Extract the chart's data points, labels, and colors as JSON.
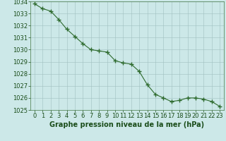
{
  "x": [
    0,
    1,
    2,
    3,
    4,
    5,
    6,
    7,
    8,
    9,
    10,
    11,
    12,
    13,
    14,
    15,
    16,
    17,
    18,
    19,
    20,
    21,
    22,
    23
  ],
  "y": [
    1033.8,
    1033.4,
    1033.2,
    1032.5,
    1031.7,
    1031.1,
    1030.5,
    1030.0,
    1029.9,
    1029.8,
    1029.1,
    1028.9,
    1028.8,
    1028.2,
    1027.1,
    1026.3,
    1026.0,
    1025.7,
    1025.8,
    1026.0,
    1026.0,
    1025.9,
    1025.7,
    1025.3
  ],
  "line_color": "#2d6a2d",
  "marker": "+",
  "marker_size": 4,
  "bg_color": "#cce8e8",
  "grid_color": "#a0c0c0",
  "xlabel": "Graphe pression niveau de la mer (hPa)",
  "xlabel_color": "#1a4d1a",
  "xlabel_fontsize": 7,
  "tick_color": "#1a4d1a",
  "tick_fontsize": 6,
  "ylim": [
    1025,
    1034
  ],
  "xlim": [
    -0.5,
    23.5
  ],
  "yticks": [
    1025,
    1026,
    1027,
    1028,
    1029,
    1030,
    1031,
    1032,
    1033,
    1034
  ],
  "xticks": [
    0,
    1,
    2,
    3,
    4,
    5,
    6,
    7,
    8,
    9,
    10,
    11,
    12,
    13,
    14,
    15,
    16,
    17,
    18,
    19,
    20,
    21,
    22,
    23
  ]
}
